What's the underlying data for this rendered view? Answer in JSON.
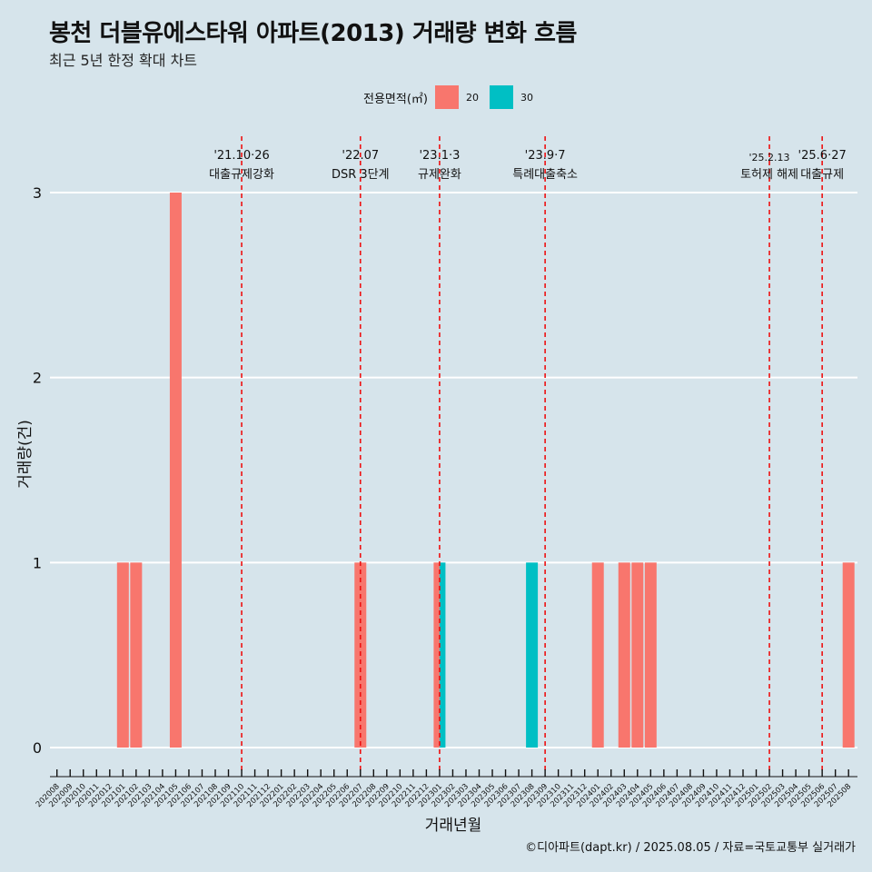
{
  "title": "봉천 더블유에스타워 아파트(2013) 거래량 변화 흐름",
  "subtitle": "최근 5년 한정 확대 차트",
  "caption": "©디아파트(dapt.kr) / 2025.08.05 / 자료=국토교통부 실거래가",
  "legend": {
    "title": "전용면적(㎡)",
    "items": [
      {
        "label": "20",
        "color": "#f8766d"
      },
      {
        "label": "30",
        "color": "#00bfc4"
      }
    ]
  },
  "chart_data": {
    "type": "bar",
    "xlabel": "거래년월",
    "ylabel": "거래량(건)",
    "ylim": [
      0,
      3
    ],
    "yticks": [
      0,
      1,
      2,
      3
    ],
    "categories": [
      "202008",
      "202009",
      "202010",
      "202011",
      "202012",
      "202101",
      "202102",
      "202103",
      "202104",
      "202105",
      "202106",
      "202107",
      "202108",
      "202109",
      "202110",
      "202111",
      "202112",
      "202201",
      "202202",
      "202203",
      "202204",
      "202205",
      "202206",
      "202207",
      "202208",
      "202209",
      "202210",
      "202211",
      "202212",
      "202301",
      "202302",
      "202303",
      "202304",
      "202305",
      "202306",
      "202307",
      "202308",
      "202309",
      "202310",
      "202311",
      "202312",
      "202401",
      "202402",
      "202403",
      "202404",
      "202405",
      "202406",
      "202407",
      "202408",
      "202409",
      "202410",
      "202411",
      "202412",
      "202501",
      "202502",
      "202503",
      "202504",
      "202505",
      "202506",
      "202507",
      "202508"
    ],
    "series": [
      {
        "name": "20",
        "color": "#f8766d",
        "values": [
          0,
          0,
          0,
          0,
          0,
          1,
          1,
          0,
          0,
          3,
          0,
          0,
          0,
          0,
          0,
          0,
          0,
          0,
          0,
          0,
          0,
          0,
          0,
          1,
          0,
          0,
          0,
          0,
          0,
          1,
          0,
          0,
          0,
          0,
          0,
          0,
          0,
          0,
          0,
          0,
          0,
          1,
          0,
          1,
          1,
          1,
          0,
          0,
          0,
          0,
          0,
          0,
          0,
          0,
          0,
          0,
          0,
          0,
          0,
          0,
          1
        ]
      },
      {
        "name": "30",
        "color": "#00bfc4",
        "values": [
          0,
          0,
          0,
          0,
          0,
          0,
          0,
          0,
          0,
          0,
          0,
          0,
          0,
          0,
          0,
          0,
          0,
          0,
          0,
          0,
          0,
          0,
          0,
          0,
          0,
          0,
          0,
          0,
          0,
          1,
          0,
          0,
          0,
          0,
          0,
          0,
          1,
          0,
          0,
          0,
          0,
          0,
          0,
          0,
          0,
          0,
          0,
          0,
          0,
          0,
          0,
          0,
          0,
          0,
          0,
          0,
          0,
          0,
          0,
          0,
          0
        ]
      }
    ],
    "annotations": [
      {
        "category": "202110",
        "date": "'21.10·26",
        "label": "대출규제강화"
      },
      {
        "category": "202207",
        "date": "'22.07",
        "label": "DSR 3단계"
      },
      {
        "category": "202301",
        "date": "'23.1·3",
        "label": "규제완화"
      },
      {
        "category": "202309",
        "date": "'23.9·7",
        "label": "특례대출축소"
      },
      {
        "category": "202502",
        "date": "'25.2.13",
        "label": "토허제 해제"
      },
      {
        "category": "202506",
        "date": "'25.6·27",
        "label": "대출규제"
      }
    ]
  }
}
